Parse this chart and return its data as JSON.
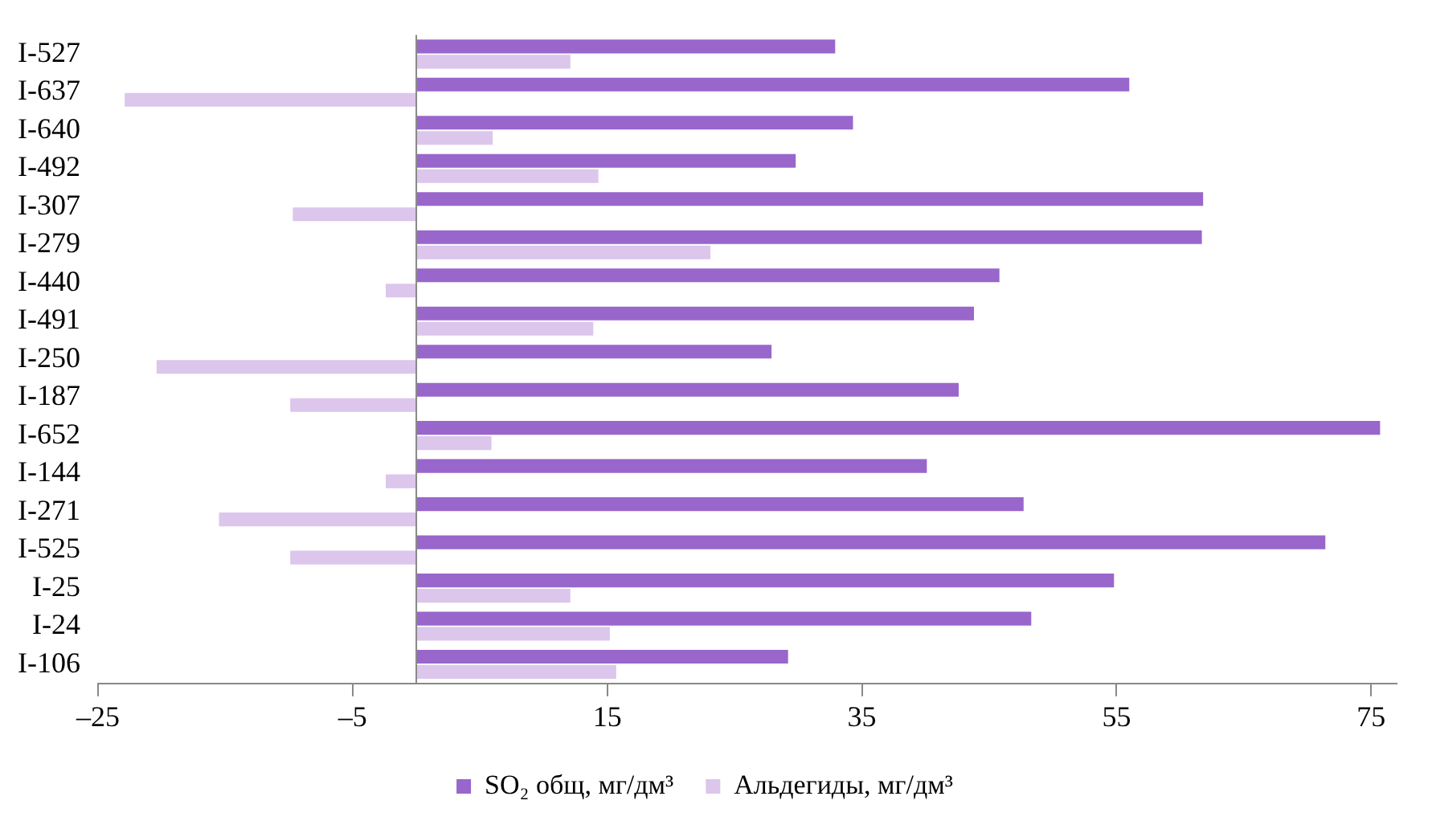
{
  "chart_data": {
    "type": "bar",
    "orientation": "horizontal",
    "categories": [
      "I-527",
      "I-637",
      "I-640",
      "I-492",
      "I-307",
      "I-279",
      "I-440",
      "I-491",
      "I-250",
      "I-187",
      "I-652",
      "I-144",
      "I-271",
      "I-525",
      "I-25",
      "I-24",
      "I-106"
    ],
    "series": [
      {
        "name": "SO₂ общ, мг/дм³",
        "color": "#9966cc",
        "values": [
          32.9,
          56.0,
          34.3,
          29.8,
          61.8,
          61.7,
          45.8,
          43.8,
          27.9,
          42.6,
          75.7,
          40.1,
          47.7,
          71.4,
          54.8,
          48.3,
          29.2
        ]
      },
      {
        "name": "Альдегиды, мг/дм³",
        "color": "#dcc6ec",
        "values": [
          12.1,
          -22.9,
          6.0,
          14.3,
          -9.7,
          23.1,
          -2.4,
          13.9,
          -20.4,
          -9.9,
          5.9,
          -2.4,
          -15.5,
          -9.9,
          12.1,
          15.2,
          15.7
        ]
      }
    ],
    "xlim": [
      -25,
      77
    ],
    "xticks": [
      {
        "value": -25,
        "label": "–25"
      },
      {
        "value": -5,
        "label": "–5"
      },
      15,
      35,
      55,
      75
    ],
    "grid": false,
    "legend": "bottom"
  }
}
